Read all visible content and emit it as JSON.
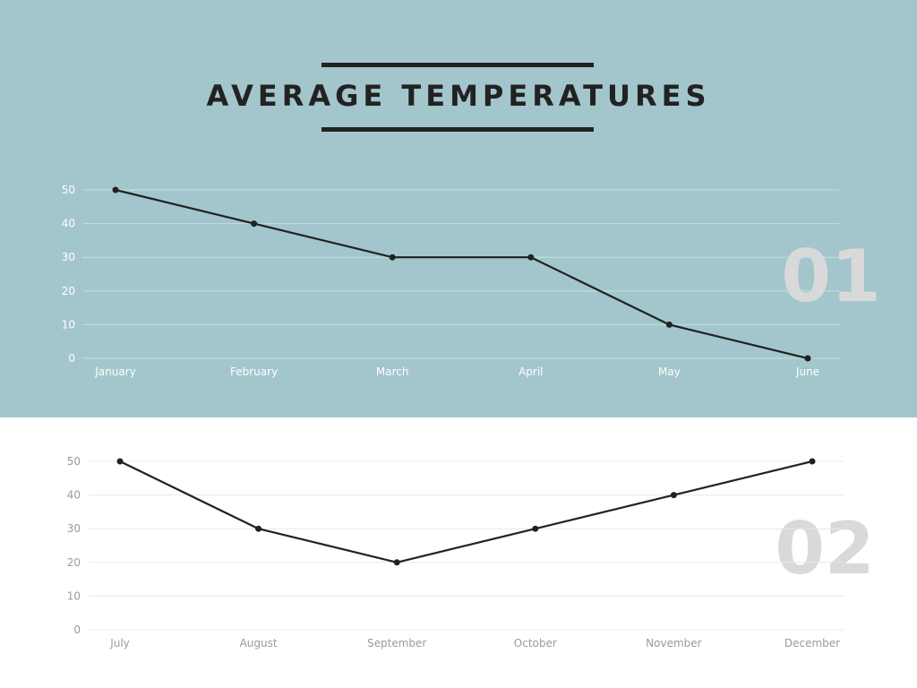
{
  "title": "AVERAGE TEMPERATURES",
  "colors": {
    "top_background": "#a3c6cd",
    "bottom_background": "#ffffff",
    "line": "#222222",
    "top_text": "#ffffff",
    "bottom_text": "#9a9a9a",
    "top_grid": "#c4dde2",
    "bottom_grid": "#e8e8e8",
    "big_number": "#d9d9d9"
  },
  "chart_data": [
    {
      "type": "line",
      "panel_number": "01",
      "categories": [
        "January",
        "February",
        "March",
        "April",
        "May",
        "June"
      ],
      "values": [
        50,
        40,
        30,
        30,
        10,
        0
      ],
      "ylim": [
        0,
        50
      ],
      "yticks": [
        0,
        10,
        20,
        30,
        40,
        50
      ],
      "grid": true,
      "legend": false
    },
    {
      "type": "line",
      "panel_number": "02",
      "categories": [
        "July",
        "August",
        "September",
        "October",
        "November",
        "December"
      ],
      "values": [
        50,
        30,
        20,
        30,
        40,
        50
      ],
      "ylim": [
        0,
        50
      ],
      "yticks": [
        0,
        10,
        20,
        30,
        40,
        50
      ],
      "grid": true,
      "legend": false
    }
  ]
}
